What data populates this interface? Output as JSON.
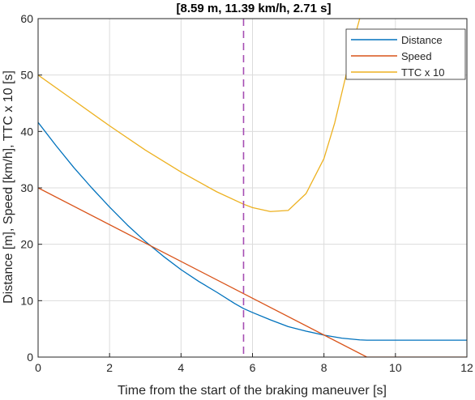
{
  "chart_data": {
    "type": "line",
    "title": "[8.59 m, 11.39 km/h, 2.71 s]",
    "xlabel": "Time from the start of the braking maneuver [s]",
    "ylabel": "Distance [m], Speed [km/h], TTC x 10 [s]",
    "xlim": [
      0,
      12
    ],
    "ylim": [
      0,
      60
    ],
    "xticks": [
      0,
      2,
      4,
      6,
      8,
      10,
      12
    ],
    "yticks": [
      0,
      10,
      20,
      30,
      40,
      50,
      60
    ],
    "grid": true,
    "legend_position": "top-right",
    "marker_line": {
      "x": 5.75,
      "style": "dashed",
      "color": "#A64DB3"
    },
    "series": [
      {
        "name": "Distance",
        "color": "#0072BD",
        "x": [
          0,
          0.5,
          1,
          1.5,
          2,
          2.5,
          3,
          3.5,
          4,
          4.5,
          5,
          5.5,
          5.75,
          6,
          6.5,
          7,
          7.5,
          8,
          8.5,
          9,
          9.2,
          10,
          11,
          12
        ],
        "y": [
          41.6,
          37.5,
          33.6,
          30.0,
          26.6,
          23.4,
          20.5,
          17.9,
          15.5,
          13.4,
          11.5,
          9.5,
          8.6,
          7.9,
          6.6,
          5.4,
          4.6,
          3.9,
          3.35,
          3.05,
          3.0,
          3.0,
          3.0,
          3.0
        ]
      },
      {
        "name": "Speed",
        "color": "#D95319",
        "x": [
          0,
          9.2,
          12
        ],
        "y": [
          30.0,
          0,
          0
        ]
      },
      {
        "name": "TTC x 10",
        "color": "#EDB120",
        "x": [
          0,
          1,
          2,
          3,
          4,
          5,
          5.75,
          6,
          6.5,
          7,
          7.5,
          8,
          8.3,
          8.6,
          8.85,
          9.0,
          9.2
        ],
        "y": [
          50,
          45.5,
          41,
          36.7,
          32.8,
          29.3,
          27.1,
          26.5,
          25.8,
          26.0,
          29.0,
          35.2,
          41.5,
          49.5,
          56.5,
          60,
          70
        ]
      }
    ]
  }
}
